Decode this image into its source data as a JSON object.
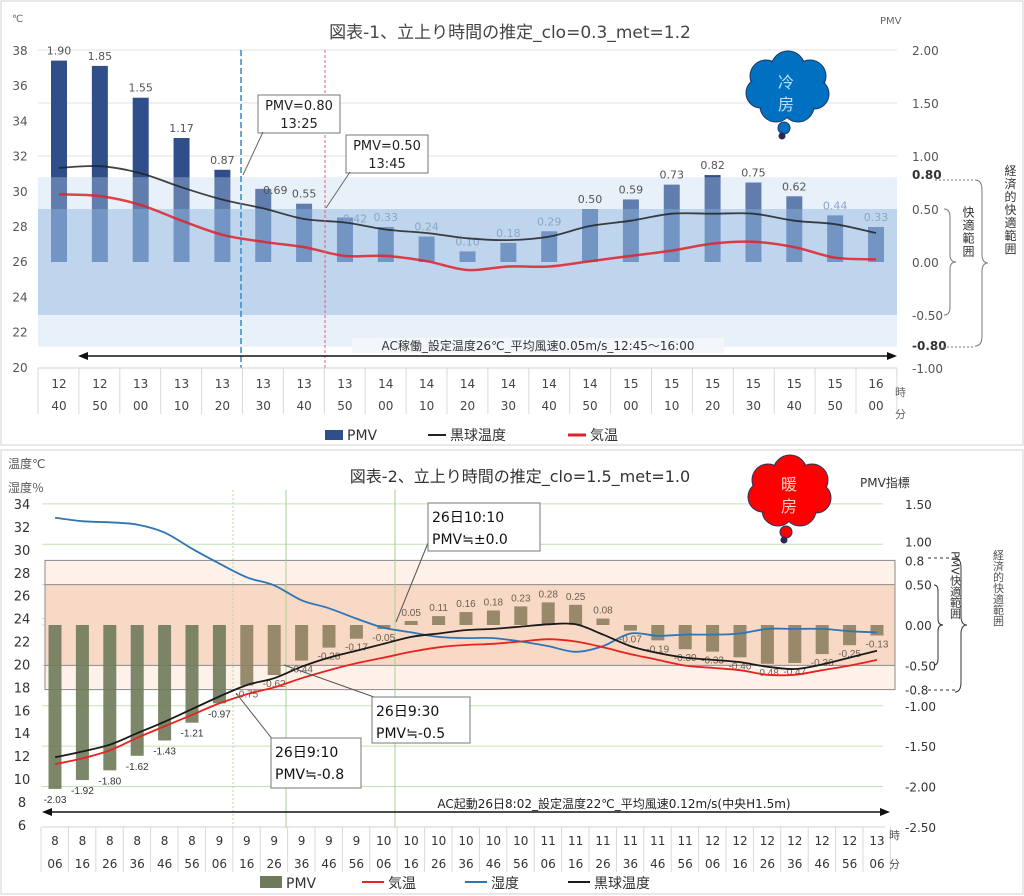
{
  "chart_data": [
    {
      "type": "bar+line",
      "title": "図表-1、立上り時間の推定_clo=0.3_met=1.2",
      "ylabel_left": "℃",
      "ylabel_right": "PMV",
      "xunit_hour": "時",
      "xunit_min": "分",
      "ylim_left": [
        20,
        38
      ],
      "ylim_right": [
        -1.0,
        2.0
      ],
      "left_ticks": [
        "20",
        "22",
        "24",
        "26",
        "28",
        "30",
        "32",
        "34",
        "36",
        "38"
      ],
      "right_ticks": [
        "2.00",
        "1.50",
        "1.00",
        "0.80",
        "0.50",
        "0.00",
        "-0.50",
        "-0.80",
        "-1.00"
      ],
      "right_tick_values": [
        2.0,
        1.5,
        1.0,
        0.8,
        0.5,
        0.0,
        -0.5,
        -0.8,
        -1.0
      ],
      "hours": [
        "12",
        "12",
        "13",
        "13",
        "13",
        "13",
        "13",
        "13",
        "14",
        "14",
        "14",
        "14",
        "14",
        "14",
        "15",
        "15",
        "15",
        "15",
        "15",
        "15",
        "16"
      ],
      "minutes": [
        "40",
        "50",
        "00",
        "10",
        "20",
        "30",
        "40",
        "50",
        "00",
        "10",
        "20",
        "30",
        "40",
        "50",
        "00",
        "10",
        "20",
        "30",
        "40",
        "50",
        "00"
      ],
      "series": [
        {
          "name": "PMV",
          "axis": "right",
          "kind": "bar",
          "color": "#2f4e8a",
          "values": [
            1.9,
            1.85,
            1.55,
            1.17,
            0.87,
            0.69,
            0.55,
            0.42,
            0.33,
            0.24,
            0.1,
            0.18,
            0.29,
            0.5,
            0.59,
            0.73,
            0.82,
            0.75,
            0.62,
            0.44,
            0.33
          ],
          "labels": [
            "1.90",
            "1.85",
            "1.55",
            "1.17",
            "0.87",
            "0.69",
            "0.55",
            "0.42",
            "0.33",
            "0.24",
            "0.10",
            "0.18",
            "0.29",
            "0.50",
            "0.59",
            "0.73",
            "0.82",
            "0.75",
            "0.62",
            "0.44",
            "0.33"
          ]
        },
        {
          "name": "黒球温度",
          "axis": "left",
          "kind": "line",
          "color": "#222222",
          "values": [
            31.3,
            31.4,
            31.0,
            30.2,
            29.5,
            29.0,
            28.4,
            28.2,
            27.8,
            27.6,
            27.3,
            27.2,
            27.4,
            28.0,
            28.3,
            28.7,
            28.7,
            28.7,
            28.3,
            28.1,
            27.6
          ]
        },
        {
          "name": "気温",
          "axis": "left",
          "kind": "line",
          "color": "#e0222a",
          "values": [
            29.8,
            29.7,
            29.2,
            28.3,
            27.5,
            27.1,
            26.8,
            26.3,
            26.3,
            26.0,
            25.5,
            25.7,
            25.7,
            26.0,
            26.3,
            26.6,
            27.0,
            27.1,
            26.8,
            26.2,
            26.1
          ]
        }
      ],
      "bands": {
        "comfort": [
          -0.5,
          0.5
        ],
        "economic": [
          -0.8,
          0.8
        ]
      },
      "band_labels": {
        "comfort": "快適範囲",
        "economic": "経済的快適範囲"
      },
      "markers": [
        {
          "time_index": 4.5,
          "style": "blue-dashed",
          "annotation": [
            "PMV=0.80",
            "13:25"
          ]
        },
        {
          "time_index": 6.5,
          "style": "red-dashed",
          "annotation": [
            "PMV=0.50",
            "13:45"
          ]
        }
      ],
      "ac_note": "AC稼働_設定温度26℃_平均風速0.05m/s_12:45～16:00",
      "badge": [
        "冷",
        "房"
      ],
      "badge_color": "#0070c0",
      "legend_position": "bottom"
    },
    {
      "type": "bar+line",
      "title": "図表-2、立上り時間の推定_clo=1.5_met=1.0",
      "ylabel_left": [
        "温度℃",
        "湿度％"
      ],
      "ylabel_right": "PMV指標",
      "xunit_hour": "時",
      "xunit_min": "分",
      "ylim_left": [
        6,
        34
      ],
      "ylim_right": [
        -2.5,
        1.5
      ],
      "left_ticks": [
        "6",
        "8",
        "10",
        "12",
        "14",
        "16",
        "18",
        "20",
        "22",
        "24",
        "26",
        "28",
        "30",
        "32",
        "34"
      ],
      "right_ticks": [
        "1.50",
        "1.00",
        "0.8",
        "0.50",
        "0.00",
        "-0.50",
        "-0.8",
        "-1.00",
        "-1.50",
        "-2.00",
        "-2.50"
      ],
      "right_tick_values": [
        1.5,
        1.0,
        0.8,
        0.5,
        0.0,
        -0.5,
        -0.8,
        -1.0,
        -1.5,
        -2.0,
        -2.5
      ],
      "hours": [
        "8",
        "8",
        "8",
        "8",
        "8",
        "8",
        "9",
        "9",
        "9",
        "9",
        "9",
        "9",
        "10",
        "10",
        "10",
        "10",
        "10",
        "10",
        "11",
        "11",
        "11",
        "11",
        "11",
        "11",
        "12",
        "12",
        "12",
        "12",
        "12",
        "12",
        "13"
      ],
      "minutes": [
        "06",
        "16",
        "26",
        "36",
        "46",
        "56",
        "06",
        "16",
        "26",
        "36",
        "46",
        "56",
        "06",
        "16",
        "26",
        "36",
        "46",
        "56",
        "06",
        "16",
        "26",
        "36",
        "46",
        "56",
        "06",
        "16",
        "26",
        "36",
        "46",
        "56",
        "06"
      ],
      "series": [
        {
          "name": "PMV",
          "axis": "right",
          "kind": "bar",
          "color": "#7d7656",
          "values": [
            -2.03,
            -1.92,
            -1.8,
            -1.62,
            -1.43,
            -1.21,
            -0.97,
            -0.75,
            -0.62,
            -0.44,
            -0.28,
            -0.17,
            -0.05,
            0.05,
            0.11,
            0.16,
            0.18,
            0.23,
            0.28,
            0.25,
            0.08,
            -0.07,
            -0.19,
            -0.3,
            -0.33,
            -0.4,
            -0.48,
            -0.47,
            -0.36,
            -0.25,
            -0.13
          ],
          "labels": [
            "-2.03",
            "-1.92",
            "-1.80",
            "-1.62",
            "-1.43",
            "-1.21",
            "-0.97",
            "-0.75",
            "-0.62",
            "-0.44",
            "-0.28",
            "-0.17",
            "-0.05",
            "0.05",
            "0.11",
            "0.16",
            "0.18",
            "0.23",
            "0.28",
            "0.25",
            "0.08",
            "-0.07",
            "-0.19",
            "-0.30",
            "-0.33",
            "-0.40",
            "-0.48",
            "-0.47",
            "-0.36",
            "-0.25",
            "-0.13"
          ]
        },
        {
          "name": "気温",
          "axis": "left",
          "kind": "line",
          "color": "#e8231f",
          "values": [
            11.3,
            11.8,
            12.5,
            13.6,
            14.6,
            15.6,
            16.6,
            17.4,
            18.0,
            18.8,
            19.5,
            20.1,
            20.6,
            21.1,
            21.5,
            21.7,
            21.8,
            22.0,
            22.2,
            22.0,
            21.5,
            20.9,
            20.4,
            19.9,
            19.7,
            19.5,
            19.1,
            19.1,
            19.5,
            19.9,
            20.4
          ]
        },
        {
          "name": "湿度",
          "axis": "left",
          "kind": "line",
          "color": "#2e75b6",
          "values": [
            32.8,
            32.5,
            32.4,
            32.2,
            31.5,
            30.1,
            28.8,
            27.6,
            26.9,
            25.6,
            24.9,
            24.0,
            23.2,
            22.8,
            22.4,
            22.3,
            22.3,
            22.0,
            21.6,
            21.1,
            21.6,
            22.7,
            22.5,
            22.6,
            22.6,
            22.7,
            23.1,
            23.1,
            23.1,
            22.9,
            22.8
          ]
        },
        {
          "name": "黒球温度",
          "axis": "left",
          "kind": "line",
          "color": "#1a1a1a",
          "values": [
            11.9,
            12.4,
            13.0,
            14.0,
            15.0,
            16.1,
            17.2,
            18.2,
            18.8,
            19.8,
            20.6,
            21.2,
            21.8,
            22.4,
            22.7,
            23.0,
            23.1,
            23.3,
            23.5,
            23.5,
            22.6,
            21.6,
            21.0,
            20.6,
            20.4,
            20.2,
            19.8,
            19.6,
            20.0,
            20.6,
            21.2
          ]
        }
      ],
      "bands": {
        "comfort": [
          -0.5,
          0.5
        ],
        "economic": [
          -0.8,
          0.8
        ]
      },
      "band_labels": {
        "comfort": "PMV快適範囲",
        "economic": "経済的快適範囲"
      },
      "annotations": [
        {
          "lines": [
            "26日10:10",
            "PMV≒±0.0"
          ]
        },
        {
          "lines": [
            "26日9:30",
            "PMV≒-0.5"
          ]
        },
        {
          "lines": [
            "26日9:10",
            "PMV≒-0.8"
          ]
        }
      ],
      "ac_note": "AC起動26日8:02_設定温度22℃_平均風速0.12m/s(中央H1.5m)",
      "badge": [
        "暖",
        "房"
      ],
      "badge_color": "#ff0000",
      "legend_position": "bottom"
    }
  ]
}
